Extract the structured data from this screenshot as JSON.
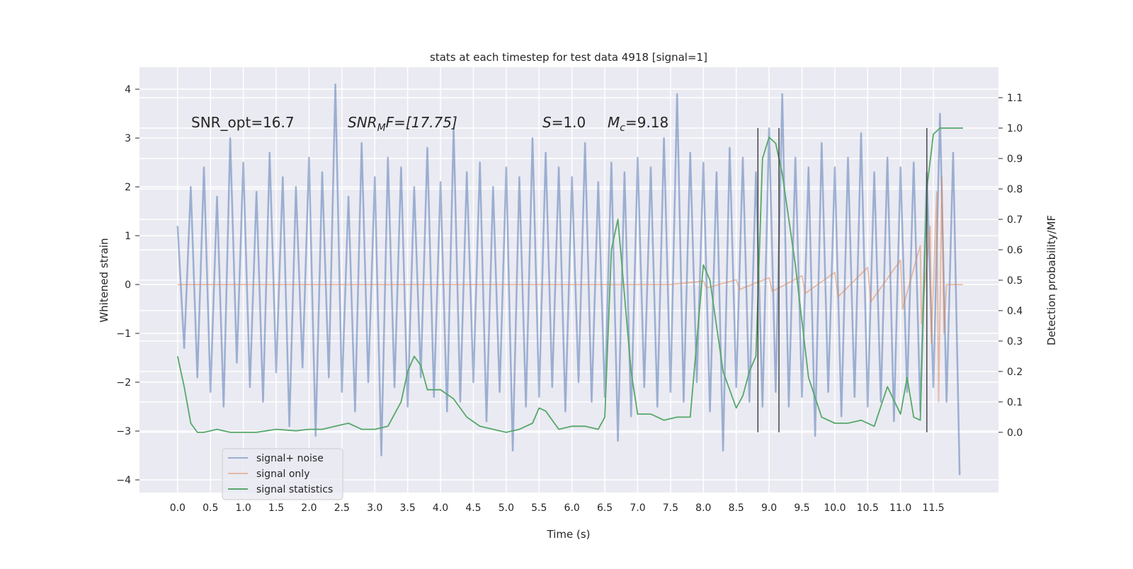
{
  "chart_data": {
    "type": "line",
    "title": "stats at each timestep for test data 4918 [signal=1]",
    "xlabel": "Time (s)",
    "ylabel": "Whitened strain",
    "y2label": "Detection probability/MF",
    "xlim": [
      -0.58,
      12.49
    ],
    "ylim": [
      -4.26,
      4.45
    ],
    "y2lim": [
      -0.198,
      1.2
    ],
    "xticks": [
      {
        "value": 0,
        "label": "0.0"
      },
      0.5,
      {
        "value": 1,
        "label": "1.0"
      },
      1.5,
      {
        "value": 2,
        "label": "2.0"
      },
      2.5,
      {
        "value": 3,
        "label": "3.0"
      },
      3.5,
      {
        "value": 4,
        "label": "4.0"
      },
      4.5,
      {
        "value": 5,
        "label": "5.0"
      },
      5.5,
      {
        "value": 6,
        "label": "6.0"
      },
      6.5,
      {
        "value": 7,
        "label": "7.0"
      },
      7.5,
      {
        "value": 8,
        "label": "8.0"
      },
      8.5,
      {
        "value": 9,
        "label": "9.0"
      },
      9.5,
      {
        "value": 10,
        "label": "10.0"
      },
      10.5,
      {
        "value": 11,
        "label": "11.0"
      },
      11.5
    ],
    "yticks": [
      {
        "value": -4,
        "label": "−4"
      },
      {
        "value": -3,
        "label": "−3"
      },
      {
        "value": -2,
        "label": "−2"
      },
      {
        "value": -1,
        "label": "−1"
      },
      0,
      1,
      2,
      3,
      4
    ],
    "y2ticks": [
      {
        "value": 0,
        "label": "0.0"
      },
      0.1,
      0.2,
      0.3,
      0.4,
      0.5,
      0.6,
      0.7,
      0.8,
      0.9,
      {
        "value": 1,
        "label": "1.0"
      },
      1.1
    ],
    "grid": true,
    "legend": "lower left",
    "annotations": [
      [
        "SNR_opt=16.7"
      ],
      [
        "SNR",
        "M",
        "F=[17.75]"
      ],
      [
        "S",
        "=1.0"
      ],
      [
        "M",
        "c",
        "=9.18"
      ]
    ],
    "vlines": [
      8.83,
      9.15,
      11.4
    ],
    "series": [
      {
        "name": "signal+ noise",
        "color": "#4c72b0",
        "x": [
          0,
          0.1,
          0.2,
          0.3,
          0.4,
          0.5,
          0.6,
          0.7,
          0.8,
          0.9,
          1,
          1.1,
          1.2,
          1.3,
          1.4,
          1.5,
          1.6,
          1.7,
          1.8,
          1.9,
          2,
          2.1,
          2.2,
          2.3,
          2.4,
          2.5,
          2.6,
          2.7,
          2.8,
          2.9,
          3,
          3.1,
          3.2,
          3.3,
          3.4,
          3.5,
          3.6,
          3.7,
          3.8,
          3.9,
          4,
          4.1,
          4.2,
          4.3,
          4.4,
          4.5,
          4.6,
          4.7,
          4.8,
          4.9,
          5,
          5.1,
          5.2,
          5.3,
          5.4,
          5.5,
          5.6,
          5.7,
          5.8,
          5.9,
          6,
          6.1,
          6.2,
          6.3,
          6.4,
          6.5,
          6.6,
          6.7,
          6.8,
          6.9,
          7,
          7.1,
          7.2,
          7.3,
          7.4,
          7.5,
          7.6,
          7.7,
          7.8,
          7.9,
          8,
          8.1,
          8.2,
          8.3,
          8.4,
          8.5,
          8.6,
          8.7,
          8.8,
          8.9,
          9,
          9.1,
          9.2,
          9.3,
          9.4,
          9.5,
          9.6,
          9.7,
          9.8,
          9.9,
          10,
          10.1,
          10.2,
          10.3,
          10.4,
          10.5,
          10.6,
          10.7,
          10.8,
          10.9,
          11,
          11.1,
          11.2,
          11.3,
          11.4,
          11.5,
          11.6,
          11.7,
          11.8,
          11.9
        ],
        "values": [
          1.2,
          -1.3,
          2.0,
          -1.9,
          2.4,
          -2.2,
          1.8,
          -2.5,
          3.0,
          -1.6,
          2.5,
          -2.1,
          1.9,
          -2.4,
          2.7,
          -1.8,
          2.2,
          -2.9,
          2.0,
          -1.7,
          2.6,
          -3.1,
          2.3,
          -1.9,
          4.1,
          -2.2,
          1.8,
          -2.6,
          2.9,
          -2.0,
          2.2,
          -3.5,
          2.6,
          -2.1,
          2.4,
          -2.5,
          2.0,
          -1.9,
          2.8,
          -2.3,
          2.1,
          -2.6,
          3.2,
          -2.4,
          2.3,
          -2.0,
          2.5,
          -2.8,
          2.0,
          -2.2,
          2.4,
          -3.4,
          2.2,
          -2.5,
          3.0,
          -2.3,
          2.7,
          -2.1,
          2.4,
          -2.6,
          2.2,
          -2.0,
          2.9,
          -2.4,
          2.1,
          -2.3,
          2.5,
          -3.2,
          2.3,
          -2.7,
          2.6,
          -2.1,
          2.4,
          -2.5,
          3.0,
          -2.2,
          3.9,
          -2.4,
          2.7,
          -2.0,
          2.5,
          -2.6,
          2.3,
          -3.4,
          2.8,
          -2.1,
          2.6,
          -2.4,
          2.3,
          -2.5,
          3.2,
          -2.2,
          3.9,
          -2.5,
          2.6,
          -2.3,
          2.4,
          -3.1,
          2.9,
          -2.2,
          2.4,
          -2.7,
          2.6,
          -2.3,
          3.1,
          -2.5,
          2.3,
          -2.4,
          2.6,
          -2.8,
          2.4,
          -2.2,
          2.5,
          -2.6,
          2.3,
          -2.1,
          3.5,
          -2.4,
          2.7,
          -3.9
        ]
      },
      {
        "name": "signal only",
        "color": "#dd8452",
        "x": [
          0,
          7.5,
          8,
          8.05,
          8.5,
          8.55,
          9,
          9.05,
          9.5,
          9.55,
          10,
          10.05,
          10.5,
          10.55,
          11,
          11.03,
          11.3,
          11.32,
          11.45,
          11.47,
          11.55,
          11.58,
          11.63,
          11.66,
          11.7,
          11.95
        ],
        "values": [
          0,
          0,
          0.07,
          -0.07,
          0.1,
          -0.1,
          0.14,
          -0.14,
          0.18,
          -0.18,
          0.25,
          -0.25,
          0.35,
          -0.35,
          0.5,
          -0.5,
          0.8,
          -0.8,
          1.2,
          -1.2,
          1.9,
          -2.4,
          2.2,
          -1.0,
          0,
          0
        ]
      },
      {
        "name": "signal statistics",
        "color": "#55a868",
        "axis": "y2",
        "x": [
          0,
          0.1,
          0.2,
          0.3,
          0.4,
          0.6,
          0.8,
          1,
          1.2,
          1.5,
          1.8,
          2,
          2.2,
          2.4,
          2.6,
          2.8,
          3,
          3.2,
          3.4,
          3.5,
          3.6,
          3.7,
          3.8,
          4,
          4.2,
          4.4,
          4.6,
          4.8,
          5,
          5.2,
          5.4,
          5.5,
          5.6,
          5.8,
          6,
          6.2,
          6.4,
          6.5,
          6.6,
          6.7,
          6.8,
          6.9,
          7,
          7.2,
          7.4,
          7.6,
          7.8,
          7.9,
          8,
          8.1,
          8.3,
          8.5,
          8.6,
          8.7,
          8.8,
          8.9,
          9,
          9.1,
          9.2,
          9.4,
          9.6,
          9.8,
          10,
          10.2,
          10.4,
          10.6,
          10.8,
          11,
          11.1,
          11.2,
          11.3,
          11.4,
          11.5,
          11.6,
          11.8,
          11.95
        ],
        "values": [
          0.25,
          0.15,
          0.03,
          0.0,
          0.0,
          0.01,
          0.0,
          0.0,
          0.0,
          0.01,
          0.005,
          0.01,
          0.01,
          0.02,
          0.03,
          0.01,
          0.01,
          0.02,
          0.1,
          0.2,
          0.25,
          0.22,
          0.14,
          0.14,
          0.11,
          0.05,
          0.02,
          0.01,
          0.0,
          0.01,
          0.03,
          0.08,
          0.07,
          0.01,
          0.02,
          0.02,
          0.01,
          0.05,
          0.6,
          0.7,
          0.45,
          0.2,
          0.06,
          0.06,
          0.04,
          0.05,
          0.05,
          0.3,
          0.55,
          0.5,
          0.2,
          0.08,
          0.12,
          0.2,
          0.25,
          0.9,
          0.97,
          0.95,
          0.85,
          0.55,
          0.18,
          0.05,
          0.03,
          0.03,
          0.04,
          0.02,
          0.15,
          0.06,
          0.18,
          0.05,
          0.04,
          0.8,
          0.98,
          1.0,
          1.0,
          1.0
        ]
      }
    ]
  }
}
